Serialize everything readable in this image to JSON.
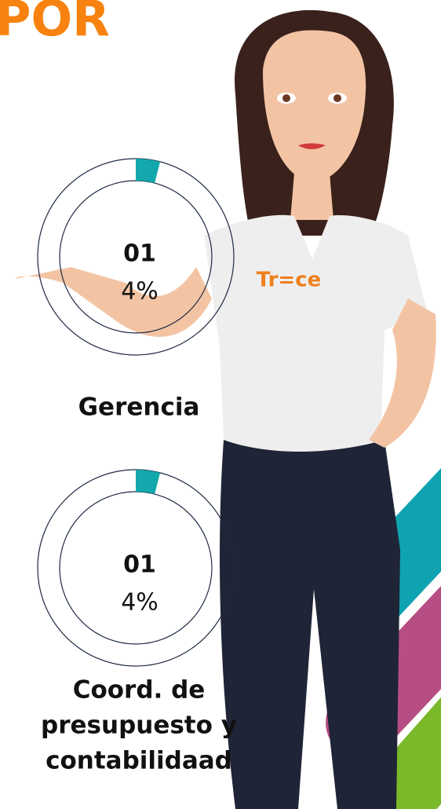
{
  "header": {
    "title": "POR"
  },
  "items": [
    {
      "count": "01",
      "value": 4,
      "value_label": "4%",
      "label": [
        "Gerencia"
      ]
    },
    {
      "count": "01",
      "value": 4,
      "value_label": "4%",
      "label": [
        "Coord. de",
        "presupuesto y",
        "contabilidaad"
      ]
    }
  ],
  "logo": "Tr=ce"
}
